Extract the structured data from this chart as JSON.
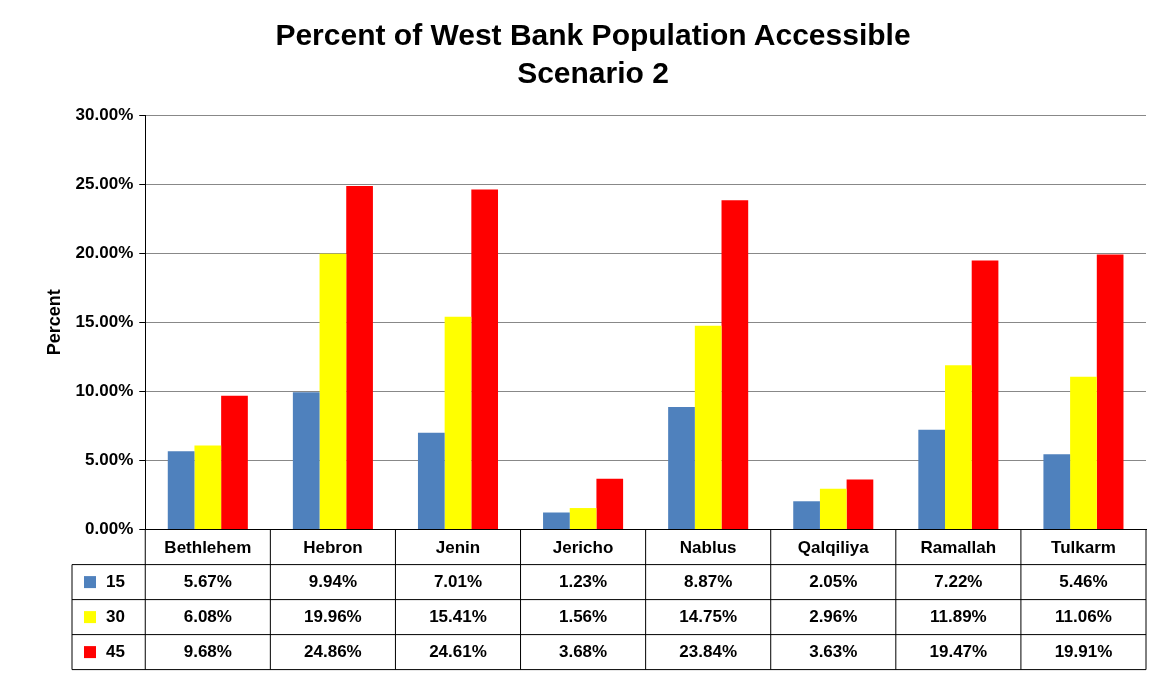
{
  "chart_data": {
    "type": "bar",
    "title": "Percent of West Bank Population Accessible",
    "subtitle": "Scenario 2",
    "ylabel": "Percent",
    "categories": [
      "Bethlehem",
      "Hebron",
      "Jenin",
      "Jericho",
      "Nablus",
      "Qalqiliya",
      "Ramallah",
      "Tulkarm"
    ],
    "series": [
      {
        "name": "15",
        "color": "#4f81bd",
        "values": [
          5.67,
          9.94,
          7.01,
          1.23,
          8.87,
          2.05,
          7.22,
          5.46
        ],
        "value_labels": [
          "5.67%",
          "9.94%",
          "7.01%",
          "1.23%",
          "8.87%",
          "2.05%",
          "7.22%",
          "5.46%"
        ]
      },
      {
        "name": "30",
        "color": "#ffff00",
        "values": [
          6.08,
          19.96,
          15.41,
          1.56,
          14.75,
          2.96,
          11.89,
          11.06
        ],
        "value_labels": [
          "6.08%",
          "19.96%",
          "15.41%",
          "1.56%",
          "14.75%",
          "2.96%",
          "11.89%",
          "11.06%"
        ]
      },
      {
        "name": "45",
        "color": "#ff0000",
        "values": [
          9.68,
          24.86,
          24.61,
          3.68,
          23.84,
          3.63,
          19.47,
          19.91
        ],
        "value_labels": [
          "9.68%",
          "24.86%",
          "24.61%",
          "3.68%",
          "23.84%",
          "3.63%",
          "19.47%",
          "19.91%"
        ]
      }
    ],
    "ylim": [
      0,
      30
    ],
    "yticks": [
      {
        "value": 0,
        "label": "0.00%"
      },
      {
        "value": 5,
        "label": "5.00%"
      },
      {
        "value": 10,
        "label": "10.00%"
      },
      {
        "value": 15,
        "label": "15.00%"
      },
      {
        "value": 20,
        "label": "20.00%"
      },
      {
        "value": 25,
        "label": "25.00%"
      },
      {
        "value": 30,
        "label": "30.00%"
      }
    ],
    "grid": "y",
    "legend": "bottom left"
  }
}
